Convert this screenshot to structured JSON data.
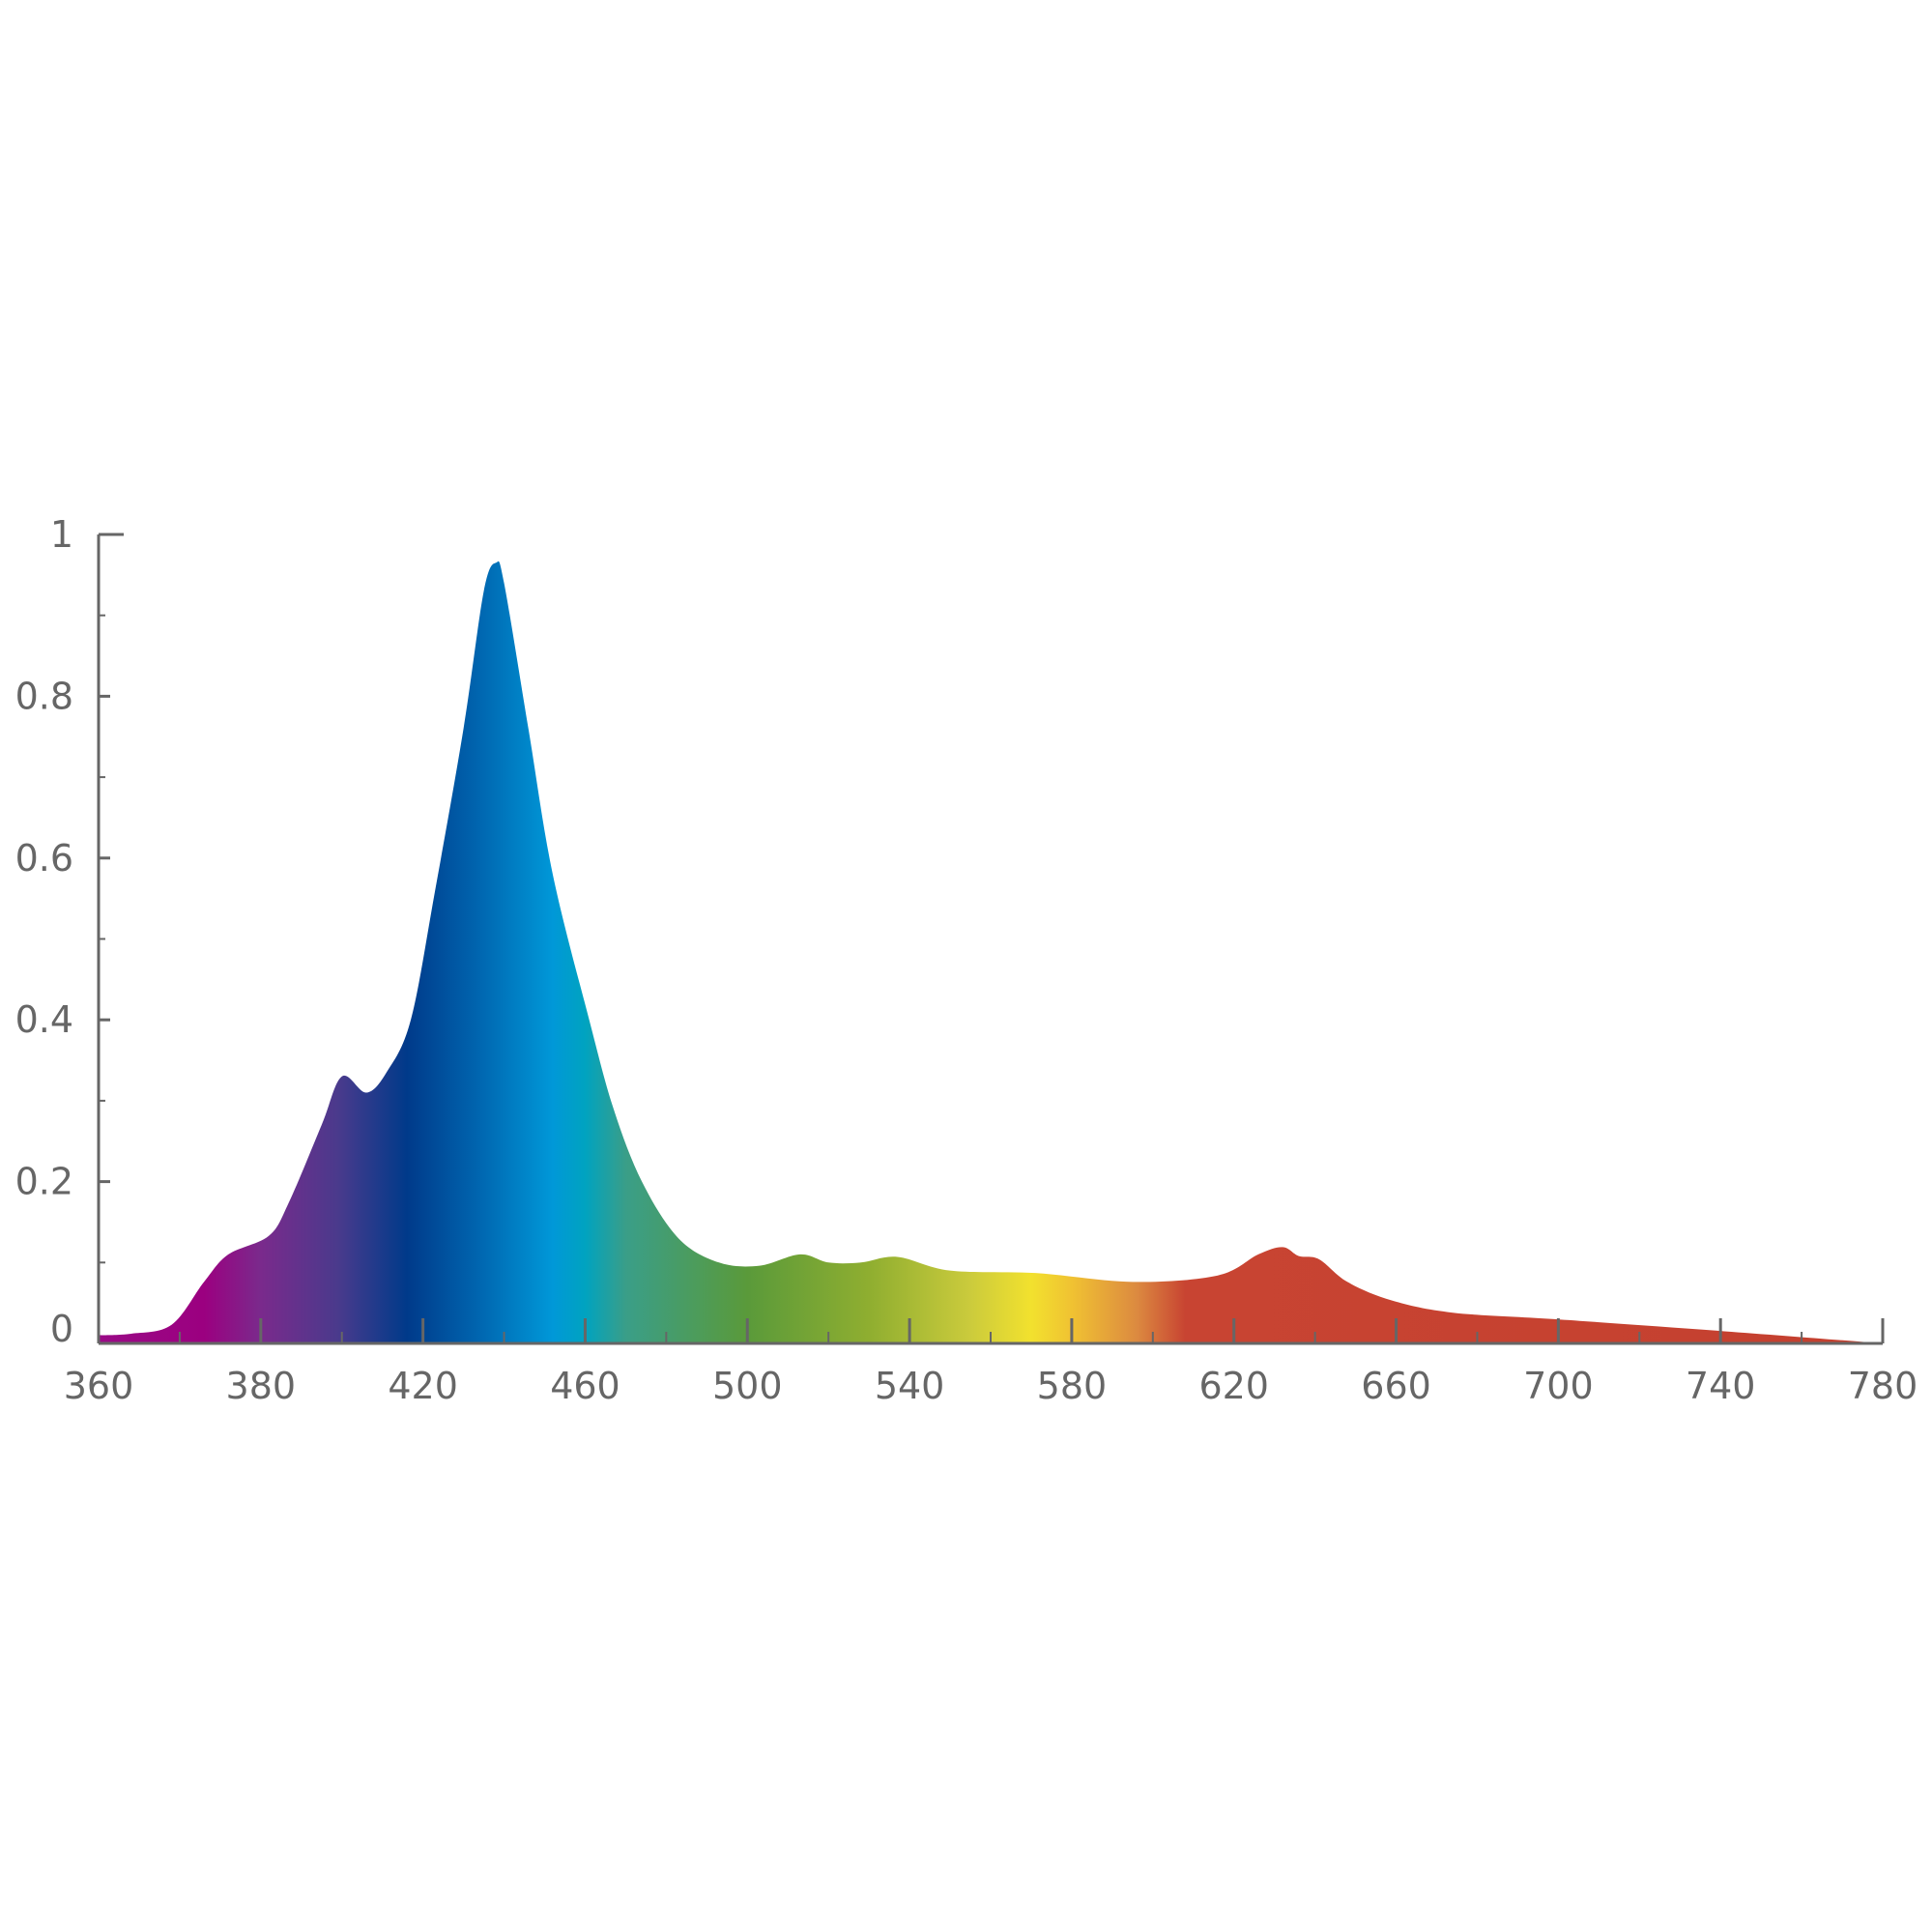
{
  "chart_data": {
    "type": "area",
    "title": "",
    "xlabel": "",
    "ylabel": "",
    "x_ticks": [
      "360",
      "380",
      "420",
      "460",
      "500",
      "540",
      "580",
      "620",
      "660",
      "700",
      "740",
      "780"
    ],
    "y_ticks": [
      "0",
      "0.2",
      "0.4",
      "0.6",
      "0.8",
      "1"
    ],
    "y_tick_values": [
      0,
      0.2,
      0.4,
      0.6,
      0.8,
      1
    ],
    "x_tick_values": [
      360,
      380,
      420,
      460,
      500,
      540,
      580,
      620,
      660,
      700,
      740,
      780
    ],
    "xlim": [
      360,
      780
    ],
    "ylim": [
      0,
      1
    ],
    "grid": false,
    "fill": "spectrum-gradient",
    "gradient": [
      {
        "x": 360,
        "color": "#9a0a86"
      },
      {
        "x": 373,
        "color": "#9b0080"
      },
      {
        "x": 380,
        "color": "#7a2a8c"
      },
      {
        "x": 399,
        "color": "#4a3a8c"
      },
      {
        "x": 416,
        "color": "#003a8a"
      },
      {
        "x": 434,
        "color": "#0066b0"
      },
      {
        "x": 452,
        "color": "#0098d8"
      },
      {
        "x": 460,
        "color": "#00a3c0"
      },
      {
        "x": 470,
        "color": "#3a9e88"
      },
      {
        "x": 500,
        "color": "#5a9a3a"
      },
      {
        "x": 530,
        "color": "#8fae30"
      },
      {
        "x": 555,
        "color": "#cbcb3c"
      },
      {
        "x": 570,
        "color": "#f2e12e"
      },
      {
        "x": 580,
        "color": "#f0c232"
      },
      {
        "x": 596,
        "color": "#dc8a40"
      },
      {
        "x": 608,
        "color": "#c84432"
      },
      {
        "x": 780,
        "color": "#c4402f"
      }
    ],
    "x": [
      360,
      364,
      369,
      373,
      376,
      382,
      387,
      395,
      400,
      406,
      411,
      417,
      423,
      430,
      435,
      438,
      440,
      446,
      452,
      461,
      467,
      474,
      483,
      493,
      503,
      513,
      520,
      528,
      537,
      550,
      571,
      595,
      616,
      626,
      632,
      636,
      641,
      648,
      659,
      674,
      699,
      741,
      780
    ],
    "values": [
      0.01,
      0.012,
      0.023,
      0.076,
      0.11,
      0.133,
      0.175,
      0.27,
      0.33,
      0.31,
      0.335,
      0.4,
      0.56,
      0.76,
      0.93,
      0.965,
      0.94,
      0.76,
      0.58,
      0.4,
      0.29,
      0.2,
      0.13,
      0.1,
      0.096,
      0.11,
      0.1,
      0.1,
      0.107,
      0.09,
      0.087,
      0.076,
      0.084,
      0.11,
      0.119,
      0.108,
      0.104,
      0.076,
      0.053,
      0.038,
      0.03,
      0.015,
      0.0
    ]
  },
  "colors": {
    "axis": "#666666"
  }
}
